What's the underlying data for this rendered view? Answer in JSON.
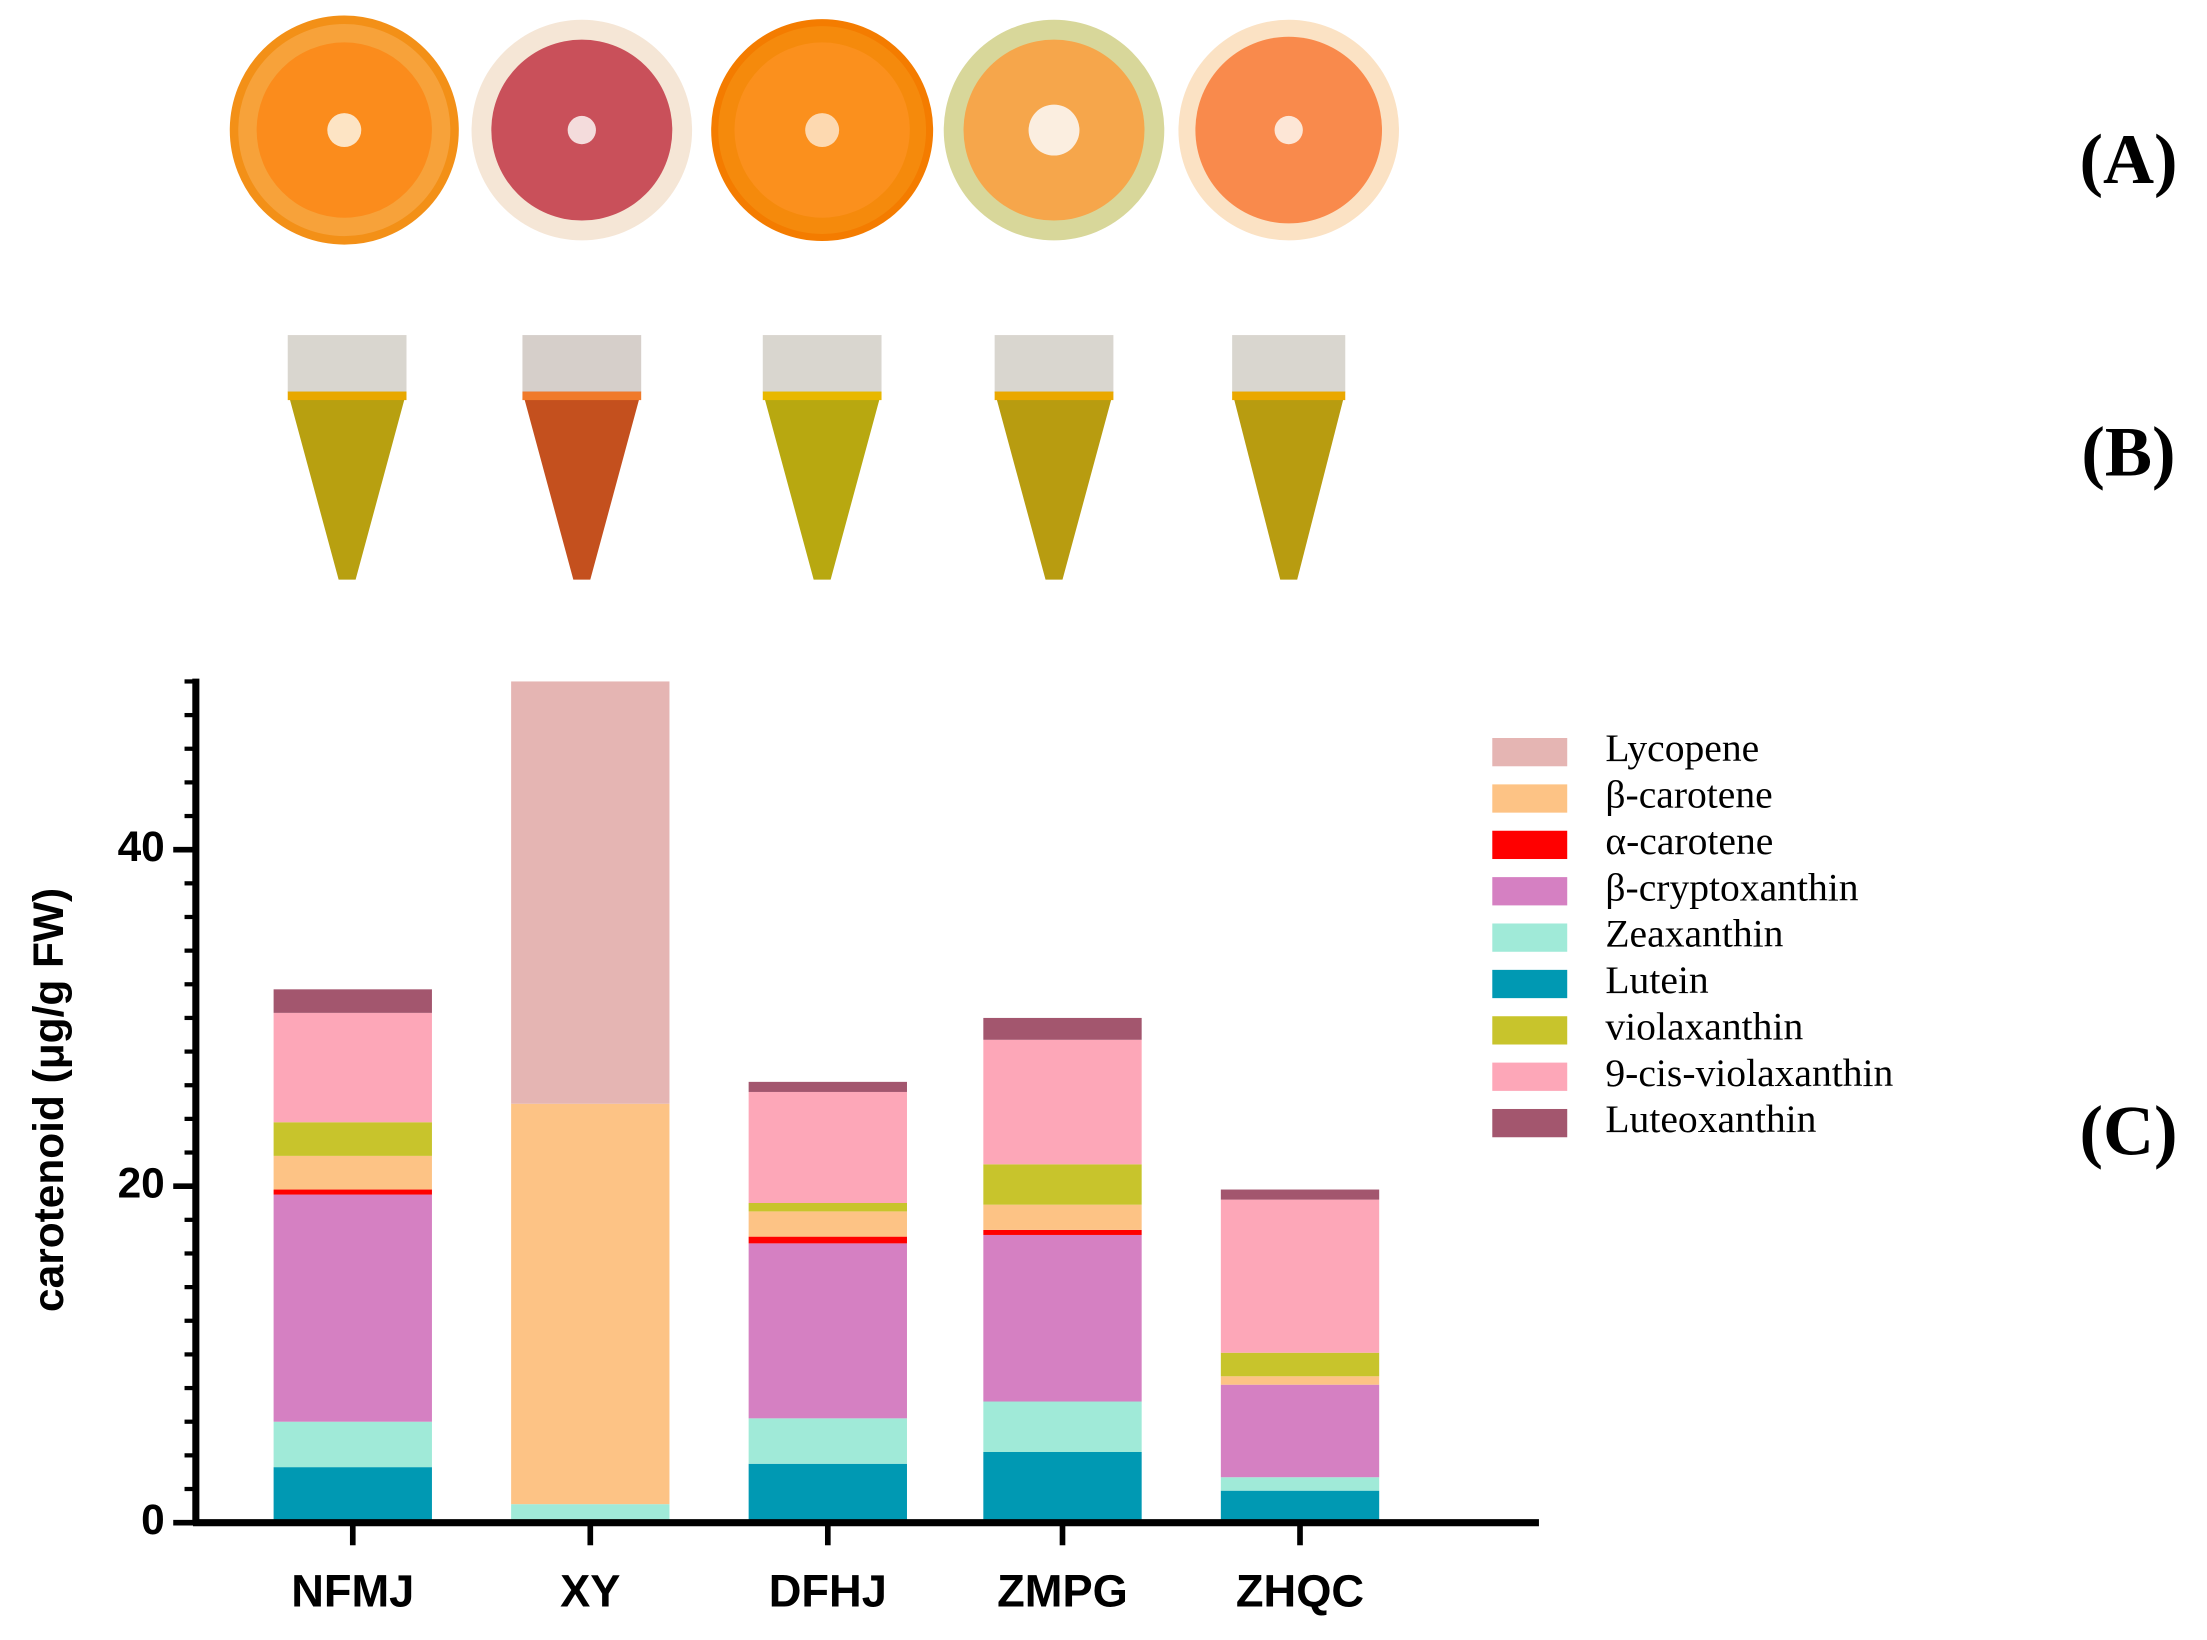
{
  "panel_labels": [
    "(A)",
    "(B)",
    "(C)"
  ],
  "chart_data": {
    "type": "stacked_bar",
    "y_label": "carotenoid (μg/g FW)",
    "categories": [
      "NFMJ",
      "XY",
      "DFHJ",
      "ZMPG",
      "ZHQC"
    ],
    "series": [
      {
        "name": "Lycopene",
        "color": "#e5b5b3",
        "values": [
          0,
          25.1,
          0,
          0,
          0
        ]
      },
      {
        "name": "β-carotene",
        "color": "#fdc385",
        "values": [
          2.0,
          23.8,
          1.5,
          1.5,
          0.5
        ]
      },
      {
        "name": "α-carotene",
        "color": "#ff0000",
        "values": [
          0.3,
          0,
          0.4,
          0.3,
          0
        ]
      },
      {
        "name": "β-cryptoxanthin",
        "color": "#d580c2",
        "values": [
          13.5,
          0,
          10.4,
          9.9,
          5.5
        ]
      },
      {
        "name": "Zeaxanthin",
        "color": "#a0ead8",
        "values": [
          2.7,
          1.1,
          2.7,
          3.0,
          0.8
        ]
      },
      {
        "name": "Lutein",
        "color": "#0099b3",
        "values": [
          3.3,
          0,
          3.5,
          4.2,
          1.9
        ]
      },
      {
        "name": "violaxanthin",
        "color": "#c8c42c",
        "values": [
          2.0,
          0,
          0.5,
          2.4,
          1.4
        ]
      },
      {
        "name": "9-cis-violaxanthin",
        "color": "#fda7b8",
        "values": [
          6.5,
          0,
          6.6,
          7.4,
          9.1
        ]
      },
      {
        "name": "Luteoxanthin",
        "color": "#a3566e",
        "values": [
          1.4,
          0,
          0.6,
          1.3,
          0.6
        ]
      }
    ],
    "ylim": [
      0,
      50
    ],
    "yticks": [
      0,
      20,
      40
    ],
    "yminorticks": [
      0,
      2,
      4,
      6,
      8,
      10,
      12,
      14,
      16,
      18,
      20,
      22,
      24,
      26,
      28,
      30,
      32,
      34,
      36,
      38,
      40,
      42,
      44,
      46,
      48,
      50
    ],
    "legend": "right"
  }
}
